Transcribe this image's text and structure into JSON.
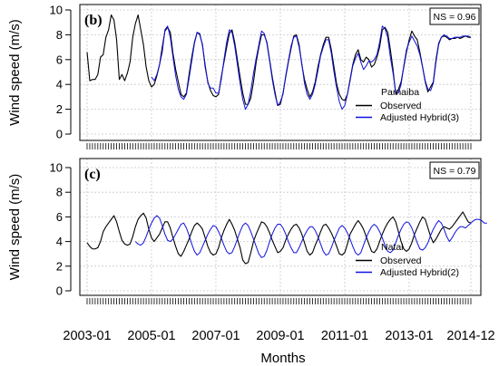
{
  "xlabel": "Months",
  "x_tick_labels": [
    "2003-01",
    "2005-01",
    "2007-01",
    "2009-01",
    "2011-01",
    "2013-01",
    "2014-12"
  ],
  "chart_data": [
    {
      "type": "line",
      "panel_tag": "(b)",
      "ylabel": "Wind speed (m/s)",
      "ylim": [
        0,
        10
      ],
      "yticks": [
        0,
        2,
        4,
        6,
        8,
        10
      ],
      "ns_label": "NS = 0.96",
      "station": "Parnaiba",
      "grid": true,
      "legend_position": "bottom-right",
      "x_start": "2003-01",
      "x_end": "2014-12",
      "series": [
        {
          "name": "Observed",
          "color": "#000000",
          "start": "2003-01",
          "values": [
            6.6,
            4.3,
            4.4,
            4.4,
            4.8,
            6.2,
            6.4,
            7.8,
            8.4,
            9.6,
            9.2,
            7.6,
            4.4,
            4.8,
            4.3,
            4.9,
            5.8,
            7.8,
            8.9,
            9.6,
            8.4,
            7.2,
            5.4,
            4.3,
            3.8,
            4.0,
            4.7,
            5.6,
            7.0,
            8.3,
            8.6,
            8.2,
            6.5,
            5.2,
            4.2,
            3.2,
            3.0,
            3.3,
            4.8,
            6.2,
            7.4,
            8.2,
            8.0,
            7.2,
            5.4,
            4.2,
            3.5,
            3.1,
            3.0,
            3.2,
            4.6,
            5.8,
            7.0,
            8.1,
            8.4,
            7.4,
            6.0,
            4.6,
            3.3,
            2.4,
            2.4,
            2.9,
            4.2,
            5.8,
            7.0,
            8.0,
            8.0,
            7.4,
            6.0,
            4.6,
            3.4,
            2.3,
            2.4,
            3.3,
            4.6,
            5.8,
            6.9,
            7.9,
            8.0,
            7.2,
            5.6,
            4.4,
            3.6,
            3.0,
            3.4,
            4.2,
            5.4,
            6.4,
            7.2,
            7.8,
            7.8,
            6.8,
            5.4,
            4.0,
            3.2,
            2.8,
            2.7,
            3.2,
            4.4,
            5.6,
            6.4,
            6.8,
            6.0,
            5.8,
            6.2,
            6.0,
            5.4,
            5.6,
            6.2,
            7.0,
            8.4,
            8.6,
            8.2,
            6.8,
            5.2,
            3.2,
            3.6,
            4.2,
            5.4,
            6.6,
            7.6,
            8.3,
            7.9,
            7.6,
            6.6,
            5.4,
            4.2,
            3.4,
            3.8,
            4.2,
            6.0,
            7.3,
            7.8,
            7.9,
            7.8,
            7.6,
            7.7,
            7.7,
            7.8,
            7.7,
            7.8,
            7.9,
            7.8,
            7.8
          ]
        },
        {
          "name": "Adjusted Hybrid(3)",
          "color": "#1010e0",
          "start": "2005-01",
          "values": [
            4.6,
            4.3,
            4.8,
            5.6,
            6.6,
            8.4,
            8.7,
            7.8,
            6.2,
            4.7,
            3.6,
            3.0,
            2.8,
            3.2,
            4.5,
            5.9,
            7.3,
            8.2,
            8.1,
            7.1,
            5.6,
            4.1,
            3.7,
            3.7,
            3.3,
            3.3,
            4.4,
            6.0,
            7.4,
            8.4,
            8.2,
            7.1,
            5.6,
            4.1,
            2.8,
            2.0,
            2.4,
            3.5,
            4.9,
            6.1,
            7.2,
            8.3,
            8.1,
            7.3,
            5.9,
            4.4,
            3.2,
            2.3,
            2.6,
            3.2,
            4.7,
            5.9,
            7.1,
            7.8,
            7.9,
            7.0,
            5.7,
            4.1,
            3.2,
            2.8,
            3.2,
            4.0,
            5.1,
            6.3,
            7.0,
            7.6,
            7.6,
            6.5,
            5.0,
            3.7,
            2.6,
            2.0,
            2.3,
            3.2,
            4.3,
            5.5,
            6.1,
            6.5,
            5.8,
            5.2,
            5.5,
            5.9,
            5.8,
            6.0,
            6.4,
            7.4,
            8.7,
            8.5,
            7.8,
            6.2,
            4.9,
            3.4,
            3.3,
            4.0,
            5.5,
            6.8,
            7.4,
            7.9,
            7.5,
            7.1,
            6.4,
            5.4,
            4.3,
            3.6,
            3.5,
            4.1,
            5.8,
            7.2,
            7.8,
            8.0,
            7.9,
            7.7,
            7.7,
            7.8,
            7.8,
            7.8,
            7.9,
            7.9,
            7.9,
            7.8
          ]
        }
      ]
    },
    {
      "type": "line",
      "panel_tag": "(c)",
      "ylabel": "Wind speed (m/s)",
      "ylim": [
        0,
        10
      ],
      "yticks": [
        0,
        2,
        4,
        6,
        8,
        10
      ],
      "ns_label": "NS = 0.79",
      "station": "Natal",
      "grid": true,
      "legend_position": "bottom-right",
      "x_start": "2003-01",
      "x_end": "2014-12",
      "series": [
        {
          "name": "Observed",
          "color": "#000000",
          "start": "2003-01",
          "values": [
            3.9,
            3.6,
            3.4,
            3.4,
            3.5,
            4.0,
            4.8,
            5.2,
            5.5,
            5.8,
            6.1,
            5.6,
            4.8,
            4.1,
            3.8,
            3.7,
            3.8,
            4.4,
            5.2,
            5.8,
            6.1,
            6.3,
            5.9,
            5.0,
            4.3,
            4.0,
            4.3,
            4.6,
            5.1,
            5.6,
            5.6,
            5.1,
            4.3,
            3.6,
            3.0,
            2.8,
            3.2,
            3.7,
            4.2,
            4.8,
            5.3,
            5.5,
            5.3,
            5.0,
            4.3,
            3.6,
            3.1,
            2.9,
            3.0,
            3.5,
            4.3,
            4.9,
            5.4,
            5.8,
            5.4,
            4.9,
            4.2,
            3.5,
            2.5,
            2.2,
            2.3,
            3.1,
            4.0,
            4.6,
            5.1,
            5.6,
            5.5,
            5.2,
            4.7,
            4.1,
            3.6,
            3.1,
            3.2,
            3.5,
            4.1,
            4.6,
            5.0,
            5.3,
            5.4,
            5.1,
            4.6,
            3.9,
            3.2,
            2.9,
            3.1,
            3.7,
            4.2,
            4.8,
            5.3,
            5.4,
            5.1,
            4.7,
            4.2,
            3.6,
            3.0,
            2.9,
            3.1,
            3.8,
            4.6,
            5.0,
            5.4,
            5.7,
            5.4,
            5.0,
            4.4,
            3.8,
            3.2,
            3.1,
            3.4,
            4.0,
            4.6,
            5.1,
            5.5,
            5.8,
            6.0,
            5.6,
            4.8,
            4.0,
            3.4,
            3.2,
            3.4,
            3.9,
            4.6,
            5.1,
            5.6,
            6.0,
            5.8,
            5.1,
            4.4,
            3.9,
            4.2,
            4.6,
            5.0,
            5.2,
            5.1,
            5.0,
            5.2,
            5.5,
            5.8,
            6.1,
            6.4,
            6.0,
            5.6,
            5.5
          ]
        },
        {
          "name": "Adjusted Hybrid(2)",
          "color": "#1010e0",
          "start": "2004-07",
          "values": [
            4.0,
            3.8,
            3.7,
            3.9,
            4.4,
            5.0,
            5.5,
            5.9,
            6.1,
            5.9,
            5.3,
            4.6,
            4.1,
            4.0,
            4.2,
            4.6,
            5.0,
            5.4,
            5.5,
            5.1,
            4.5,
            3.8,
            3.2,
            2.9,
            3.1,
            3.6,
            4.1,
            4.6,
            5.0,
            5.3,
            5.2,
            4.8,
            4.3,
            3.7,
            3.2,
            3.0,
            3.1,
            3.6,
            4.2,
            4.8,
            5.3,
            5.5,
            5.3,
            4.8,
            4.2,
            3.6,
            3.0,
            2.7,
            2.8,
            3.3,
            4.0,
            4.6,
            5.1,
            5.4,
            5.4,
            5.1,
            4.6,
            4.0,
            3.5,
            3.1,
            3.1,
            3.5,
            4.0,
            4.5,
            4.9,
            5.2,
            5.2,
            4.9,
            4.4,
            3.8,
            3.2,
            2.9,
            3.0,
            3.5,
            4.1,
            4.6,
            5.1,
            5.3,
            5.1,
            4.7,
            4.2,
            3.6,
            3.1,
            2.9,
            3.1,
            3.7,
            4.3,
            4.8,
            5.2,
            5.4,
            5.2,
            4.8,
            4.3,
            3.7,
            3.2,
            3.1,
            3.3,
            3.9,
            4.5,
            5.0,
            5.4,
            5.6,
            5.5,
            5.1,
            4.5,
            3.9,
            3.4,
            3.3,
            3.5,
            3.9,
            4.5,
            5.0,
            5.4,
            5.7,
            5.5,
            5.0,
            4.4,
            4.0,
            4.3,
            4.7,
            5.0,
            5.2,
            5.2,
            5.1,
            5.3,
            5.5,
            5.7,
            5.8,
            5.8,
            5.7,
            5.5,
            5.5
          ]
        }
      ]
    }
  ]
}
